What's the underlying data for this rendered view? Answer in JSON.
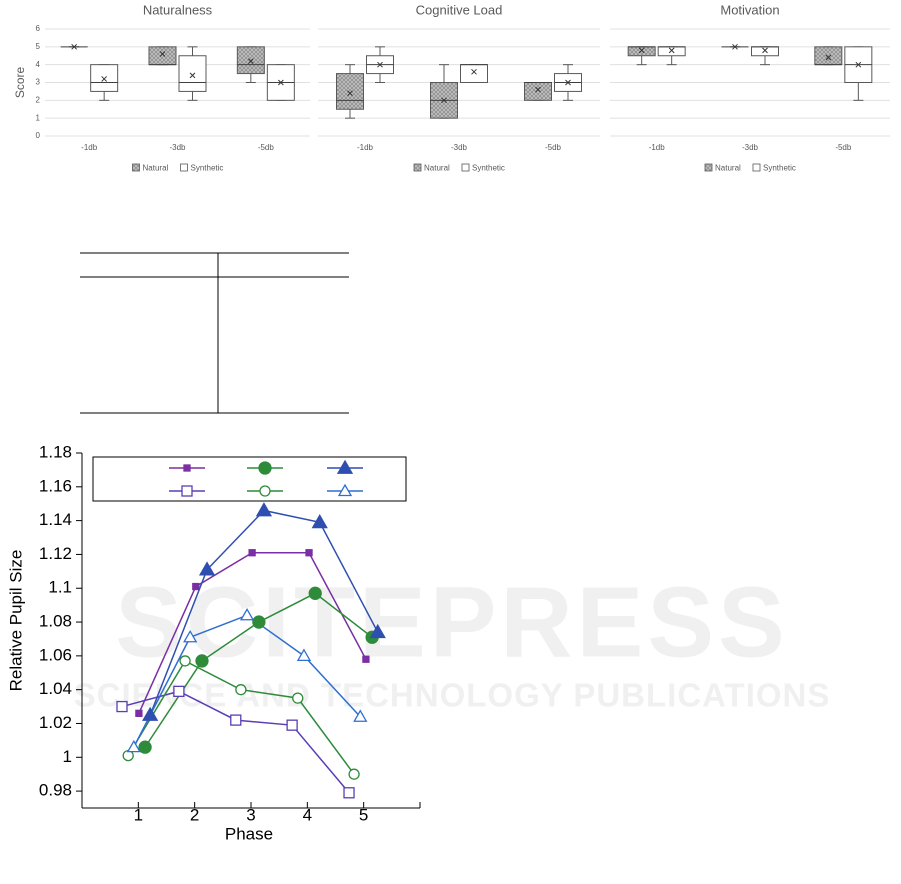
{
  "watermark": {
    "title": "SCITEPRESS",
    "subtitle": "SCIENCE AND TECHNOLOGY PUBLICATIONS"
  },
  "chart_data": [
    {
      "type": "box",
      "title": "Naturalness",
      "ylabel": "Score",
      "ylim": [
        0,
        6
      ],
      "yticks": [
        0,
        1,
        2,
        3,
        4,
        5,
        6
      ],
      "ytick_labels": true,
      "grid": true,
      "categories": [
        "-1db",
        "-3db",
        "-5db"
      ],
      "series": [
        {
          "name": "Natural",
          "color": "#bfbfbf",
          "pattern": "crosshatch",
          "boxes": [
            {
              "min": 5,
              "q1": 5,
              "median": 5,
              "q3": 5,
              "max": 5,
              "mean": 5
            },
            {
              "min": 4,
              "q1": 4,
              "median": 4,
              "q3": 5,
              "max": 5,
              "mean": 4.6
            },
            {
              "min": 3,
              "q1": 3.5,
              "median": 4,
              "q3": 5,
              "max": 5,
              "mean": 4.2
            }
          ]
        },
        {
          "name": "Synthetic",
          "color": "#ffffff",
          "boxes": [
            {
              "min": 2,
              "q1": 2.5,
              "median": 3,
              "q3": 4,
              "max": 4,
              "mean": 3.2
            },
            {
              "min": 2,
              "q1": 2.5,
              "median": 3,
              "q3": 4.5,
              "max": 5,
              "mean": 3.4
            },
            {
              "min": 2,
              "q1": 2,
              "median": 3,
              "q3": 4,
              "max": 4,
              "mean": 3
            }
          ]
        }
      ]
    },
    {
      "type": "box",
      "title": "Cognitive Load",
      "ylim": [
        0,
        6
      ],
      "yticks": [
        0,
        1,
        2,
        3,
        4,
        5,
        6
      ],
      "ytick_labels": false,
      "grid": true,
      "categories": [
        "-1db",
        "-3db",
        "-5db"
      ],
      "series": [
        {
          "name": "Natural",
          "color": "#bfbfbf",
          "pattern": "crosshatch",
          "boxes": [
            {
              "min": 1,
              "q1": 1.5,
              "median": 2,
              "q3": 3.5,
              "max": 4,
              "mean": 2.4
            },
            {
              "min": 1,
              "q1": 1,
              "median": 2,
              "q3": 3,
              "max": 4,
              "mean": 2
            },
            {
              "min": 2,
              "q1": 2,
              "median": 3,
              "q3": 3,
              "max": 3,
              "mean": 2.6
            }
          ]
        },
        {
          "name": "Synthetic",
          "color": "#ffffff",
          "boxes": [
            {
              "min": 3,
              "q1": 3.5,
              "median": 4,
              "q3": 4.5,
              "max": 5,
              "mean": 4
            },
            {
              "min": 3,
              "q1": 3,
              "median": 4,
              "q3": 4,
              "max": 4,
              "mean": 3.6
            },
            {
              "min": 2,
              "q1": 2.5,
              "median": 3,
              "q3": 3.5,
              "max": 4,
              "mean": 3
            }
          ]
        }
      ]
    },
    {
      "type": "box",
      "title": "Motivation",
      "ylim": [
        0,
        6
      ],
      "yticks": [
        0,
        1,
        2,
        3,
        4,
        5,
        6
      ],
      "ytick_labels": false,
      "grid": true,
      "categories": [
        "-1db",
        "-3db",
        "-5db"
      ],
      "series": [
        {
          "name": "Natural",
          "color": "#bfbfbf",
          "pattern": "crosshatch",
          "boxes": [
            {
              "min": 4,
              "q1": 4.5,
              "median": 5,
              "q3": 5,
              "max": 5,
              "mean": 4.8
            },
            {
              "min": 5,
              "q1": 5,
              "median": 5,
              "q3": 5,
              "max": 5,
              "mean": 5
            },
            {
              "min": 4,
              "q1": 4,
              "median": 4,
              "q3": 5,
              "max": 5,
              "mean": 4.4
            }
          ]
        },
        {
          "name": "Synthetic",
          "color": "#ffffff",
          "boxes": [
            {
              "min": 4,
              "q1": 4.5,
              "median": 5,
              "q3": 5,
              "max": 5,
              "mean": 4.8
            },
            {
              "min": 4,
              "q1": 4.5,
              "median": 5,
              "q3": 5,
              "max": 5,
              "mean": 4.8
            },
            {
              "min": 2,
              "q1": 3,
              "median": 4,
              "q3": 5,
              "max": 5,
              "mean": 4
            }
          ]
        }
      ]
    },
    {
      "type": "line",
      "xlabel": "Phase",
      "ylabel": "Relative Pupil Size",
      "xlim": [
        0,
        6
      ],
      "xticks": [
        1,
        2,
        3,
        4,
        5
      ],
      "ylim": [
        0.97,
        1.18
      ],
      "yticks": [
        0.98,
        1,
        1.02,
        1.04,
        1.06,
        1.08,
        1.1,
        1.12,
        1.14,
        1.16,
        1.18
      ],
      "series": [
        {
          "color": "#7a2fa5",
          "marker": "square",
          "marker_size": 3,
          "filled": true,
          "x": [
            1.01,
            2.02,
            3.02,
            4.03,
            5.04
          ],
          "values": [
            1.026,
            1.101,
            1.121,
            1.121,
            1.058
          ]
        },
        {
          "color": "#2e8b3a",
          "marker": "circle",
          "marker_size": 6,
          "filled": true,
          "x": [
            1.12,
            2.13,
            3.14,
            4.14,
            5.15
          ],
          "values": [
            1.006,
            1.057,
            1.08,
            1.097,
            1.071
          ]
        },
        {
          "color": "#2f4fb0",
          "marker": "triangle",
          "marker_size": 7,
          "filled": true,
          "x": [
            1.21,
            2.22,
            3.23,
            4.22,
            5.25
          ],
          "values": [
            1.025,
            1.111,
            1.146,
            1.139,
            1.074
          ]
        },
        {
          "color": "#5a3eb5",
          "marker": "square",
          "marker_size": 5,
          "filled": false,
          "x": [
            0.71,
            1.72,
            2.73,
            3.73,
            4.74
          ],
          "values": [
            1.03,
            1.039,
            1.022,
            1.019,
            0.979
          ]
        },
        {
          "color": "#2e8b3a",
          "marker": "circle",
          "marker_size": 5,
          "filled": false,
          "x": [
            0.82,
            1.83,
            2.82,
            3.83,
            4.83
          ],
          "values": [
            1.001,
            1.057,
            1.04,
            1.035,
            0.99
          ]
        },
        {
          "color": "#2f6fd0",
          "marker": "triangle",
          "marker_size": 6,
          "filled": false,
          "x": [
            0.92,
            1.92,
            2.93,
            3.94,
            4.94
          ],
          "values": [
            1.006,
            1.071,
            1.084,
            1.06,
            1.024
          ]
        }
      ]
    }
  ]
}
